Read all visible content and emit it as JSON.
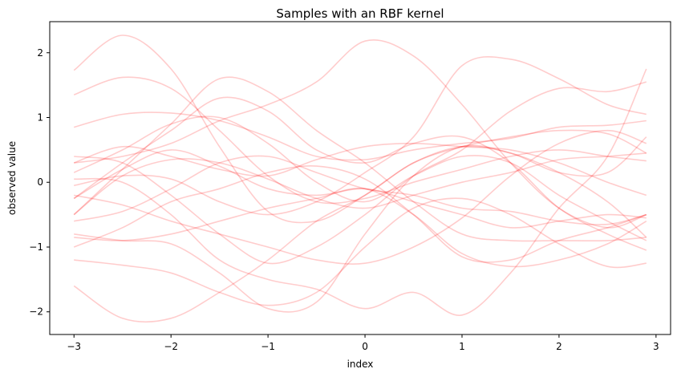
{
  "chart_data": {
    "type": "line",
    "title": "Samples with an RBF kernel",
    "xlabel": "index",
    "ylabel": "observed value",
    "xlim": [
      -3.25,
      3.15
    ],
    "ylim": [
      -2.35,
      2.48
    ],
    "xticks": [
      -3,
      -2,
      -1,
      0,
      1,
      2,
      3
    ],
    "xtick_labels": [
      "−3",
      "−2",
      "−1",
      "0",
      "1",
      "2",
      "3"
    ],
    "yticks": [
      -2,
      -1,
      0,
      1,
      2
    ],
    "ytick_labels": [
      "−2",
      "−1",
      "0",
      "1",
      "2"
    ],
    "grid": false,
    "legend": "none",
    "line_color": "#ff0000",
    "line_opacity": 0.2,
    "x": [
      -3,
      -2.5,
      -2,
      -1.5,
      -1,
      -0.5,
      0,
      0.5,
      1,
      1.5,
      2,
      2.5,
      2.9
    ],
    "series": [
      {
        "values": [
          1.73,
          2.27,
          1.75,
          0.55,
          -0.45,
          -0.6,
          -0.2,
          0.3,
          0.55,
          0.7,
          0.8,
          0.75,
          0.45
        ]
      },
      {
        "values": [
          1.35,
          1.62,
          1.45,
          0.8,
          0.1,
          -0.3,
          -0.25,
          0.0,
          0.2,
          0.4,
          0.5,
          0.4,
          0.33
        ]
      },
      {
        "values": [
          0.85,
          1.05,
          1.07,
          0.95,
          0.7,
          0.4,
          0.35,
          0.5,
          0.6,
          0.68,
          0.85,
          0.88,
          0.95
        ]
      },
      {
        "values": [
          0.3,
          0.4,
          0.6,
          0.95,
          1.2,
          1.55,
          2.18,
          1.95,
          1.2,
          0.3,
          -0.4,
          -0.7,
          -0.5
        ]
      },
      {
        "values": [
          0.15,
          0.5,
          0.9,
          1.0,
          0.6,
          0.0,
          -0.3,
          0.1,
          0.4,
          0.3,
          -0.2,
          -0.6,
          -0.9
        ]
      },
      {
        "values": [
          -0.25,
          0.3,
          0.8,
          1.3,
          1.1,
          0.5,
          0.3,
          0.6,
          0.7,
          0.3,
          -0.4,
          -0.8,
          -1.05
        ]
      },
      {
        "values": [
          -0.05,
          0.1,
          0.05,
          -0.3,
          -0.5,
          -0.3,
          0.15,
          0.7,
          1.8,
          1.9,
          1.6,
          1.2,
          1.05
        ]
      },
      {
        "values": [
          0.4,
          0.3,
          -0.2,
          -0.8,
          -1.25,
          -1.0,
          -0.5,
          0.1,
          0.5,
          1.1,
          1.45,
          1.4,
          1.55
        ]
      },
      {
        "values": [
          -0.5,
          0.2,
          0.9,
          1.6,
          1.4,
          0.8,
          0.3,
          -0.3,
          -0.8,
          -0.9,
          -0.9,
          -0.9,
          -0.85
        ]
      },
      {
        "values": [
          0.3,
          0.55,
          0.4,
          0.2,
          0.1,
          0.35,
          0.55,
          0.6,
          0.55,
          0.5,
          0.3,
          0.0,
          -0.2
        ]
      },
      {
        "values": [
          -0.25,
          0.2,
          0.5,
          0.25,
          -0.1,
          -0.2,
          -0.1,
          -0.3,
          -0.5,
          -0.7,
          -0.6,
          -0.5,
          -0.55
        ]
      },
      {
        "values": [
          -0.2,
          -0.35,
          -0.6,
          -0.8,
          -1.0,
          -1.2,
          -1.25,
          -1.0,
          -0.55,
          0.1,
          0.6,
          0.8,
          0.6
        ]
      },
      {
        "values": [
          -0.6,
          -0.45,
          -0.1,
          0.3,
          0.4,
          0.15,
          -0.1,
          -0.2,
          -0.4,
          -0.45,
          -0.6,
          -0.65,
          -0.5
        ]
      },
      {
        "values": [
          -0.85,
          -0.9,
          -0.8,
          -0.6,
          -0.4,
          -0.25,
          -0.1,
          -0.5,
          -1.1,
          -1.3,
          -1.2,
          -0.95,
          -0.6
        ]
      },
      {
        "values": [
          -1.0,
          -0.7,
          -0.3,
          -0.1,
          0.15,
          0.25,
          0.05,
          -0.5,
          -1.15,
          -1.2,
          -0.9,
          -0.7,
          -0.5
        ]
      },
      {
        "values": [
          -1.2,
          -1.28,
          -1.4,
          -1.7,
          -1.9,
          -1.7,
          -1.0,
          -0.4,
          -0.25,
          -0.5,
          -0.95,
          -1.3,
          -1.25
        ]
      },
      {
        "values": [
          -1.6,
          -2.1,
          -2.1,
          -1.7,
          -1.2,
          -0.6,
          -0.2,
          0.3,
          0.55,
          0.45,
          0.15,
          0.15,
          0.7
        ]
      },
      {
        "values": [
          -0.8,
          -0.9,
          -0.95,
          -1.4,
          -1.95,
          -1.85,
          -0.8,
          0.1,
          0.55,
          0.45,
          0.15,
          -0.3,
          -0.85
        ]
      },
      {
        "values": [
          0.05,
          0.0,
          -0.5,
          -1.2,
          -1.5,
          -1.65,
          -1.95,
          -1.7,
          -2.05,
          -1.4,
          -0.4,
          0.4,
          1.75
        ]
      },
      {
        "values": [
          -0.5,
          0.1,
          0.35,
          0.3,
          0.05,
          -0.25,
          -0.4,
          -0.2,
          0.0,
          0.15,
          0.35,
          0.4,
          0.45
        ]
      }
    ]
  }
}
